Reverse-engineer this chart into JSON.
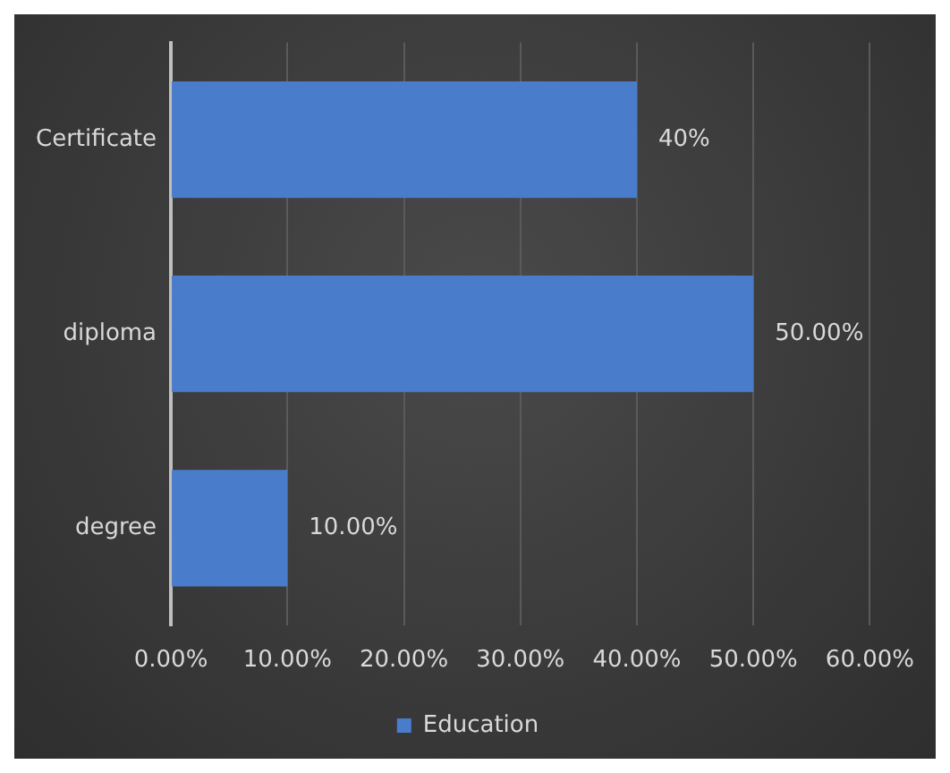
{
  "chart_data": {
    "type": "bar",
    "orientation": "horizontal",
    "categories": [
      "Certificate",
      "diploma",
      "degree"
    ],
    "series": [
      {
        "name": "Education",
        "color": "#4a7ccc",
        "values": [
          40,
          50,
          10
        ],
        "value_labels": [
          "40%",
          "50.00%",
          "10.00%"
        ]
      }
    ],
    "xlim": [
      0,
      60
    ],
    "xticks": [
      {
        "value": 0,
        "label": "0.00%"
      },
      {
        "value": 10,
        "label": "10.00%"
      },
      {
        "value": 20,
        "label": "20.00%"
      },
      {
        "value": 30,
        "label": "30.00%"
      },
      {
        "value": 40,
        "label": "40.00%"
      },
      {
        "value": 50,
        "label": "50.00%"
      },
      {
        "value": 60,
        "label": "60.00%"
      }
    ],
    "grid": "x",
    "legend": "bottom"
  }
}
